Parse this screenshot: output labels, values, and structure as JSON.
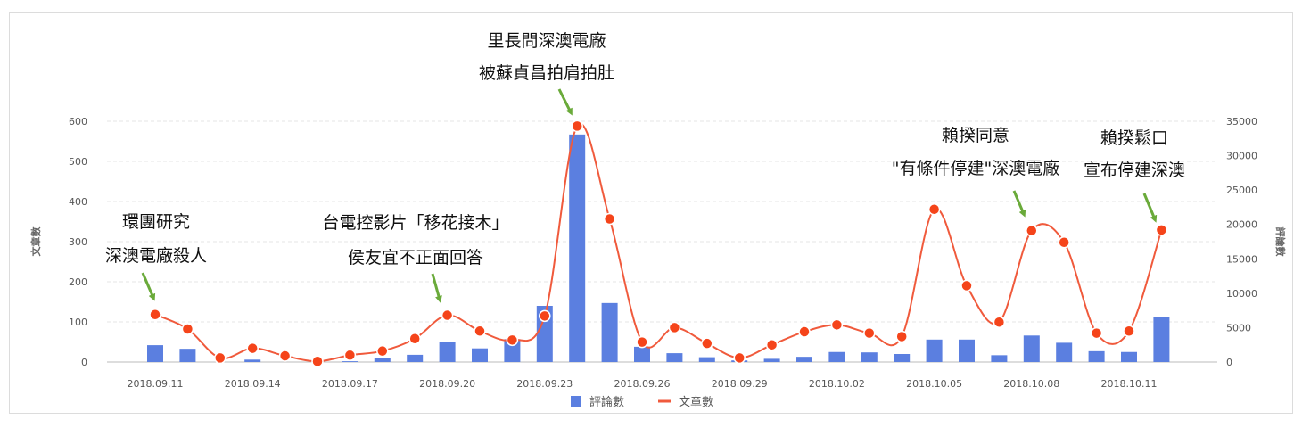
{
  "chart_data": {
    "type": "bar+line",
    "x": [
      "2018.09.11",
      "2018.09.12",
      "2018.09.13",
      "2018.09.14",
      "2018.09.15",
      "2018.09.16",
      "2018.09.17",
      "2018.09.18",
      "2018.09.19",
      "2018.09.20",
      "2018.09.21",
      "2018.09.22",
      "2018.09.23",
      "2018.09.24",
      "2018.09.25",
      "2018.09.26",
      "2018.09.27",
      "2018.09.28",
      "2018.09.29",
      "2018.09.30",
      "2018.10.01",
      "2018.10.02",
      "2018.10.03",
      "2018.10.04",
      "2018.10.05",
      "2018.10.06",
      "2018.10.07",
      "2018.10.08",
      "2018.10.09",
      "2018.10.10",
      "2018.10.11",
      "2018.10.12"
    ],
    "x_tick_labels": [
      "2018.09.11",
      "2018.09.14",
      "2018.09.17",
      "2018.09.20",
      "2018.09.23",
      "2018.09.26",
      "2018.09.29",
      "2018.10.02",
      "2018.10.05",
      "2018.10.08",
      "2018.10.11"
    ],
    "left_axis": {
      "label": "文章數",
      "ticks": [
        0,
        100,
        200,
        300,
        400,
        500,
        600
      ],
      "range": [
        0,
        600
      ]
    },
    "right_axis": {
      "label": "評論數",
      "ticks": [
        0,
        5000,
        10000,
        15000,
        20000,
        25000,
        30000,
        35000
      ],
      "range": [
        0,
        35000
      ]
    },
    "series": [
      {
        "name": "評論數",
        "kind": "bar",
        "axis": "left",
        "color": "#5b7fe0",
        "values": [
          42,
          33,
          0,
          6,
          0,
          0,
          2,
          10,
          18,
          50,
          34,
          57,
          140,
          567,
          147,
          38,
          22,
          12,
          4,
          8,
          13,
          25,
          24,
          20,
          56,
          56,
          17,
          66,
          48,
          27,
          25,
          112
        ]
      },
      {
        "name": "文章數",
        "kind": "line",
        "axis": "right",
        "color": "#f05a3c",
        "point_color": "#f5441a",
        "values": [
          6900,
          4800,
          600,
          2000,
          900,
          100,
          1000,
          1600,
          3400,
          6800,
          4500,
          3200,
          6700,
          34300,
          20800,
          2900,
          5000,
          2700,
          600,
          2500,
          4400,
          5400,
          4200,
          3700,
          22200,
          11100,
          5800,
          19100,
          17400,
          4200,
          4500,
          19200
        ]
      }
    ],
    "grid": true,
    "legend": {
      "position": "bottom-center",
      "items": [
        "評論數",
        "文章數"
      ]
    }
  },
  "annotations": [
    {
      "lines": [
        "環團研究",
        "深澳電廠殺人"
      ],
      "color": "#111111"
    },
    {
      "lines": [
        "台電控影片「移花接木」",
        "侯友宜不正面回答"
      ],
      "color": "#111111"
    },
    {
      "lines": [
        "里長問深澳電廠",
        "被蘇貞昌拍肩拍肚"
      ],
      "color": "#111111"
    },
    {
      "lines": [
        "賴揆同意",
        "\"有條件停建\"深澳電廠"
      ],
      "color": "#111111"
    },
    {
      "lines": [
        "賴揆鬆口",
        "宣布停建深澳"
      ],
      "color": "#111111"
    }
  ],
  "arrow_color": "#6aaa3a"
}
